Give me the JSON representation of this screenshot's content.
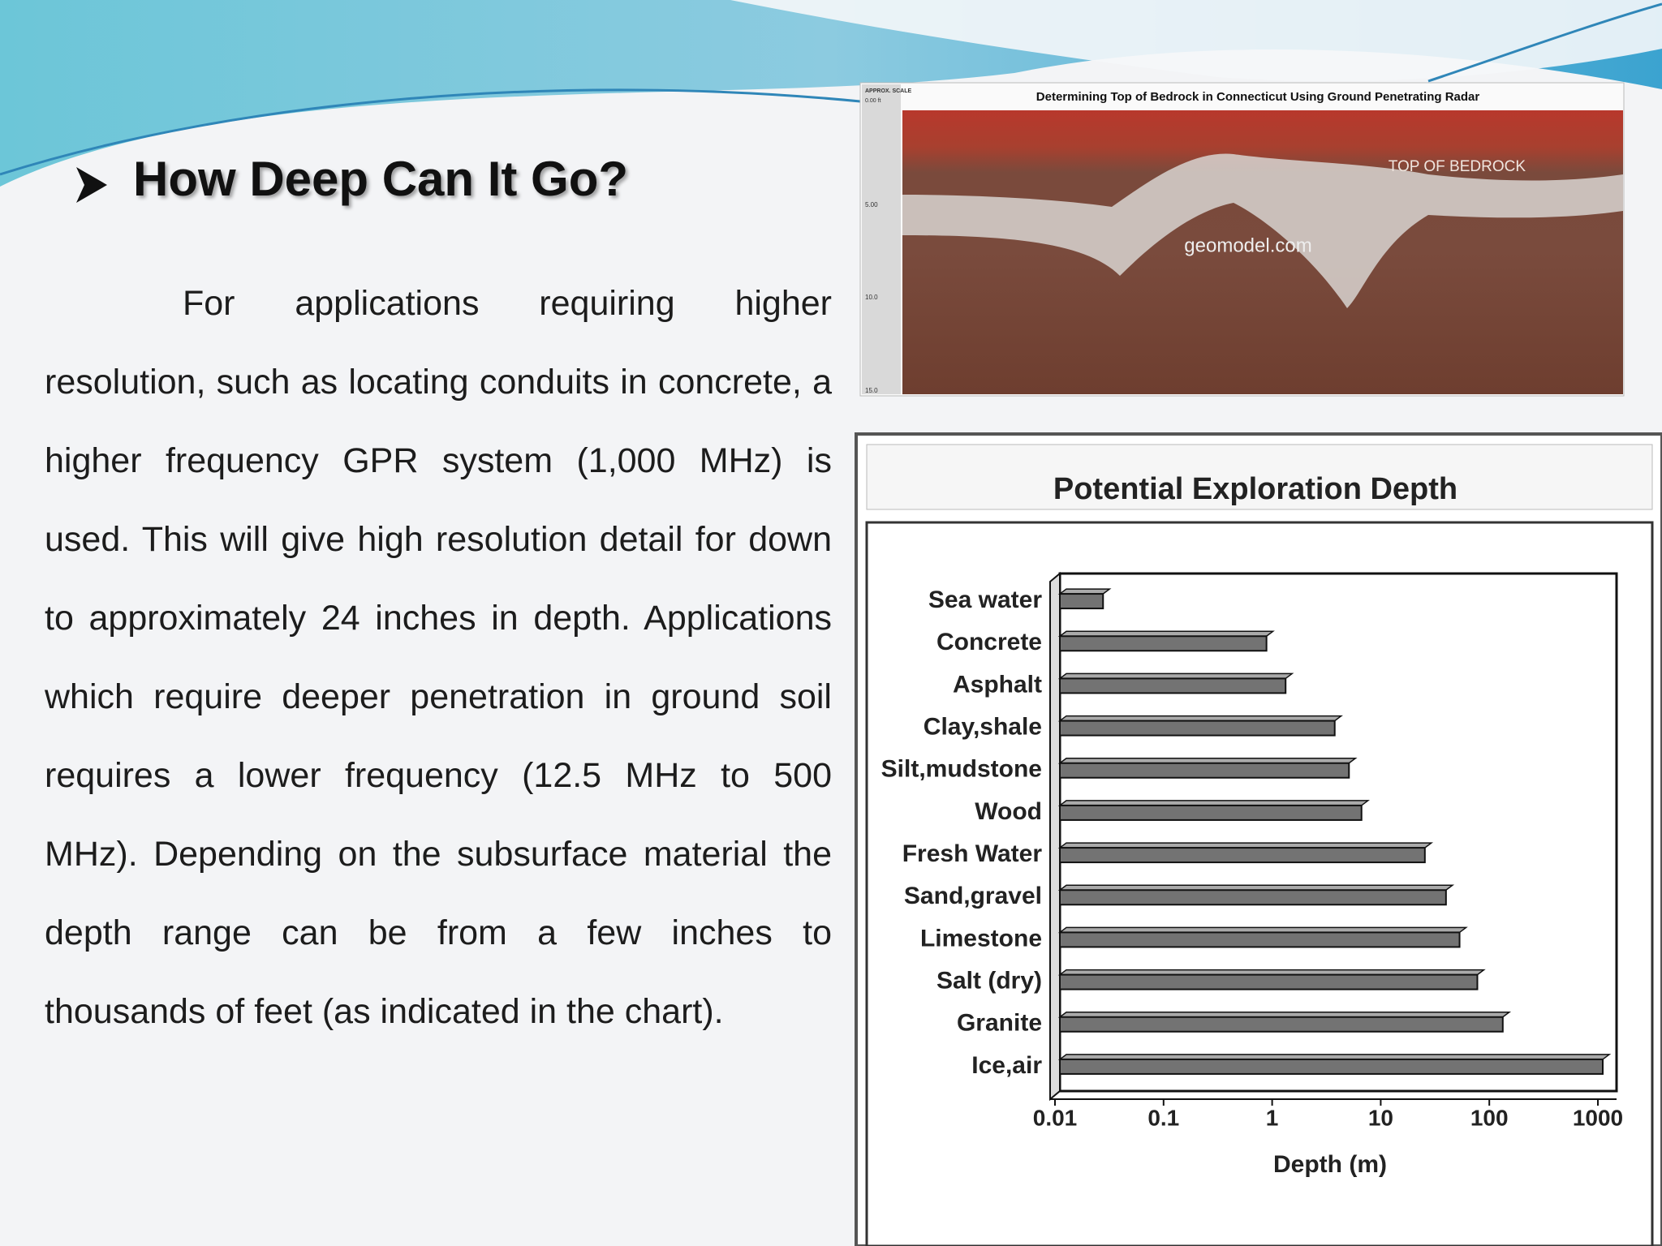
{
  "header": {
    "title": "How Deep Can It Go?"
  },
  "body": {
    "paragraph": "For applications requiring higher resolution, such as locating conduits in concrete, a higher frequency GPR system (1,000 MHz) is used. This will give high resolution detail for down to approximately 24 inches in depth. Applications which require deeper penetration in ground soil requires a lower frequency (12.5 MHz to 500 MHz). Depending on the subsurface material the depth range can be from a few inches to thousands of feet (as indicated in the chart)."
  },
  "radar_image": {
    "title": "Determining Top of Bedrock in Connecticut Using Ground Penetrating Radar",
    "scale_caption": "APPROX. SCALE",
    "scale_labels": [
      "0.00 ft",
      "5.00",
      "10.0",
      "15.0"
    ],
    "annotation": "TOP OF BEDROCK",
    "watermark": "geomodel.com"
  },
  "chart_data": {
    "type": "bar",
    "orientation": "horizontal",
    "title": "Potential Exploration Depth",
    "x_label": "Depth (m)",
    "categories": [
      "Sea water",
      "Concrete",
      "Asphalt",
      "Clay,shale",
      "Silt,mudstone",
      "Wood",
      "Fresh Water",
      "Sand,gravel",
      "Limestone",
      "Salt (dry)",
      "Granite",
      "Ice,air"
    ],
    "values": [
      0.025,
      0.8,
      1.2,
      3.4,
      4.6,
      6,
      23,
      36,
      48,
      70,
      120,
      1000
    ],
    "color": "#737373",
    "xscale": "log",
    "xlim": [
      0.01,
      1000
    ],
    "xticks": [
      0.01,
      0.1,
      1,
      10,
      100,
      1000
    ]
  }
}
